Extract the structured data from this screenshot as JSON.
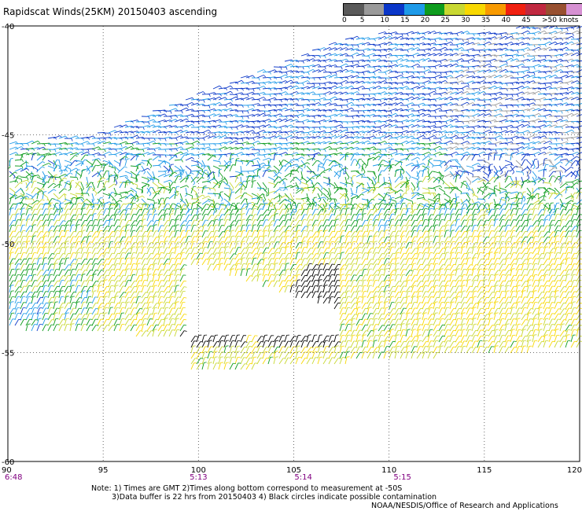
{
  "title": "Rapidscat Winds(25KM) 20150403 ascending",
  "colorbar": {
    "colors": [
      "#5a5a5a",
      "#9a9a9a",
      "#0a36c8",
      "#1e9ae8",
      "#0e9c1e",
      "#c8d832",
      "#f8d800",
      "#f89a00",
      "#f02010",
      "#c02840",
      "#985030",
      "#d690d2",
      "#7a00c8"
    ],
    "labels": [
      "0",
      "5",
      "10",
      "15",
      "20",
      "25",
      "30",
      "35",
      "40",
      "45",
      ">50 knots"
    ]
  },
  "map": {
    "lon_ticks": [
      "90",
      "95",
      "100",
      "105",
      "110",
      "115",
      "120"
    ],
    "lat_ticks": [
      "-40",
      "-45",
      "-50",
      "-55",
      "-60"
    ],
    "lon_range": [
      90,
      120
    ],
    "lat_range": [
      -40,
      -60
    ],
    "grid": "dotted"
  },
  "times": [
    {
      "label": "6:48",
      "lon": 90
    },
    {
      "label": "5:13",
      "lon": 100
    },
    {
      "label": "5:14",
      "lon": 105.5
    },
    {
      "label": "5:15",
      "lon": 110.7
    }
  ],
  "notes": {
    "line1": "Note: 1) Times are GMT 2)Times along bottom correspond to measurement at -50S",
    "line2": "3)Data buffer is 22 hrs from 20150403 4) Black circles indicate possible contamination",
    "credit": "NOAA/NESDIS/Office of Research and Applications"
  }
}
